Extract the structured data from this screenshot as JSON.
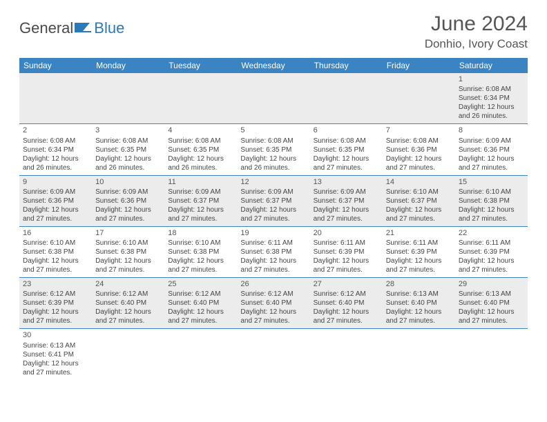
{
  "logo": {
    "general": "General",
    "blue": "Blue"
  },
  "title": "June 2024",
  "location": "Donhio, Ivory Coast",
  "colors": {
    "header_bg": "#3b84c4",
    "header_text": "#ffffff",
    "alt_row_bg": "#ececec",
    "text": "#444444",
    "title_text": "#555555",
    "logo_blue": "#2a7ab9",
    "logo_gray": "#4a4a4a",
    "border": "#3b84c4",
    "page_bg": "#ffffff"
  },
  "weekdays": [
    "Sunday",
    "Monday",
    "Tuesday",
    "Wednesday",
    "Thursday",
    "Friday",
    "Saturday"
  ],
  "weeks": [
    [
      null,
      null,
      null,
      null,
      null,
      null,
      {
        "n": "1",
        "sr": "Sunrise: 6:08 AM",
        "ss": "Sunset: 6:34 PM",
        "d1": "Daylight: 12 hours",
        "d2": "and 26 minutes."
      }
    ],
    [
      {
        "n": "2",
        "sr": "Sunrise: 6:08 AM",
        "ss": "Sunset: 6:34 PM",
        "d1": "Daylight: 12 hours",
        "d2": "and 26 minutes."
      },
      {
        "n": "3",
        "sr": "Sunrise: 6:08 AM",
        "ss": "Sunset: 6:35 PM",
        "d1": "Daylight: 12 hours",
        "d2": "and 26 minutes."
      },
      {
        "n": "4",
        "sr": "Sunrise: 6:08 AM",
        "ss": "Sunset: 6:35 PM",
        "d1": "Daylight: 12 hours",
        "d2": "and 26 minutes."
      },
      {
        "n": "5",
        "sr": "Sunrise: 6:08 AM",
        "ss": "Sunset: 6:35 PM",
        "d1": "Daylight: 12 hours",
        "d2": "and 26 minutes."
      },
      {
        "n": "6",
        "sr": "Sunrise: 6:08 AM",
        "ss": "Sunset: 6:35 PM",
        "d1": "Daylight: 12 hours",
        "d2": "and 27 minutes."
      },
      {
        "n": "7",
        "sr": "Sunrise: 6:08 AM",
        "ss": "Sunset: 6:36 PM",
        "d1": "Daylight: 12 hours",
        "d2": "and 27 minutes."
      },
      {
        "n": "8",
        "sr": "Sunrise: 6:09 AM",
        "ss": "Sunset: 6:36 PM",
        "d1": "Daylight: 12 hours",
        "d2": "and 27 minutes."
      }
    ],
    [
      {
        "n": "9",
        "sr": "Sunrise: 6:09 AM",
        "ss": "Sunset: 6:36 PM",
        "d1": "Daylight: 12 hours",
        "d2": "and 27 minutes."
      },
      {
        "n": "10",
        "sr": "Sunrise: 6:09 AM",
        "ss": "Sunset: 6:36 PM",
        "d1": "Daylight: 12 hours",
        "d2": "and 27 minutes."
      },
      {
        "n": "11",
        "sr": "Sunrise: 6:09 AM",
        "ss": "Sunset: 6:37 PM",
        "d1": "Daylight: 12 hours",
        "d2": "and 27 minutes."
      },
      {
        "n": "12",
        "sr": "Sunrise: 6:09 AM",
        "ss": "Sunset: 6:37 PM",
        "d1": "Daylight: 12 hours",
        "d2": "and 27 minutes."
      },
      {
        "n": "13",
        "sr": "Sunrise: 6:09 AM",
        "ss": "Sunset: 6:37 PM",
        "d1": "Daylight: 12 hours",
        "d2": "and 27 minutes."
      },
      {
        "n": "14",
        "sr": "Sunrise: 6:10 AM",
        "ss": "Sunset: 6:37 PM",
        "d1": "Daylight: 12 hours",
        "d2": "and 27 minutes."
      },
      {
        "n": "15",
        "sr": "Sunrise: 6:10 AM",
        "ss": "Sunset: 6:38 PM",
        "d1": "Daylight: 12 hours",
        "d2": "and 27 minutes."
      }
    ],
    [
      {
        "n": "16",
        "sr": "Sunrise: 6:10 AM",
        "ss": "Sunset: 6:38 PM",
        "d1": "Daylight: 12 hours",
        "d2": "and 27 minutes."
      },
      {
        "n": "17",
        "sr": "Sunrise: 6:10 AM",
        "ss": "Sunset: 6:38 PM",
        "d1": "Daylight: 12 hours",
        "d2": "and 27 minutes."
      },
      {
        "n": "18",
        "sr": "Sunrise: 6:10 AM",
        "ss": "Sunset: 6:38 PM",
        "d1": "Daylight: 12 hours",
        "d2": "and 27 minutes."
      },
      {
        "n": "19",
        "sr": "Sunrise: 6:11 AM",
        "ss": "Sunset: 6:38 PM",
        "d1": "Daylight: 12 hours",
        "d2": "and 27 minutes."
      },
      {
        "n": "20",
        "sr": "Sunrise: 6:11 AM",
        "ss": "Sunset: 6:39 PM",
        "d1": "Daylight: 12 hours",
        "d2": "and 27 minutes."
      },
      {
        "n": "21",
        "sr": "Sunrise: 6:11 AM",
        "ss": "Sunset: 6:39 PM",
        "d1": "Daylight: 12 hours",
        "d2": "and 27 minutes."
      },
      {
        "n": "22",
        "sr": "Sunrise: 6:11 AM",
        "ss": "Sunset: 6:39 PM",
        "d1": "Daylight: 12 hours",
        "d2": "and 27 minutes."
      }
    ],
    [
      {
        "n": "23",
        "sr": "Sunrise: 6:12 AM",
        "ss": "Sunset: 6:39 PM",
        "d1": "Daylight: 12 hours",
        "d2": "and 27 minutes."
      },
      {
        "n": "24",
        "sr": "Sunrise: 6:12 AM",
        "ss": "Sunset: 6:40 PM",
        "d1": "Daylight: 12 hours",
        "d2": "and 27 minutes."
      },
      {
        "n": "25",
        "sr": "Sunrise: 6:12 AM",
        "ss": "Sunset: 6:40 PM",
        "d1": "Daylight: 12 hours",
        "d2": "and 27 minutes."
      },
      {
        "n": "26",
        "sr": "Sunrise: 6:12 AM",
        "ss": "Sunset: 6:40 PM",
        "d1": "Daylight: 12 hours",
        "d2": "and 27 minutes."
      },
      {
        "n": "27",
        "sr": "Sunrise: 6:12 AM",
        "ss": "Sunset: 6:40 PM",
        "d1": "Daylight: 12 hours",
        "d2": "and 27 minutes."
      },
      {
        "n": "28",
        "sr": "Sunrise: 6:13 AM",
        "ss": "Sunset: 6:40 PM",
        "d1": "Daylight: 12 hours",
        "d2": "and 27 minutes."
      },
      {
        "n": "29",
        "sr": "Sunrise: 6:13 AM",
        "ss": "Sunset: 6:40 PM",
        "d1": "Daylight: 12 hours",
        "d2": "and 27 minutes."
      }
    ],
    [
      {
        "n": "30",
        "sr": "Sunrise: 6:13 AM",
        "ss": "Sunset: 6:41 PM",
        "d1": "Daylight: 12 hours",
        "d2": "and 27 minutes."
      },
      null,
      null,
      null,
      null,
      null,
      null
    ]
  ]
}
